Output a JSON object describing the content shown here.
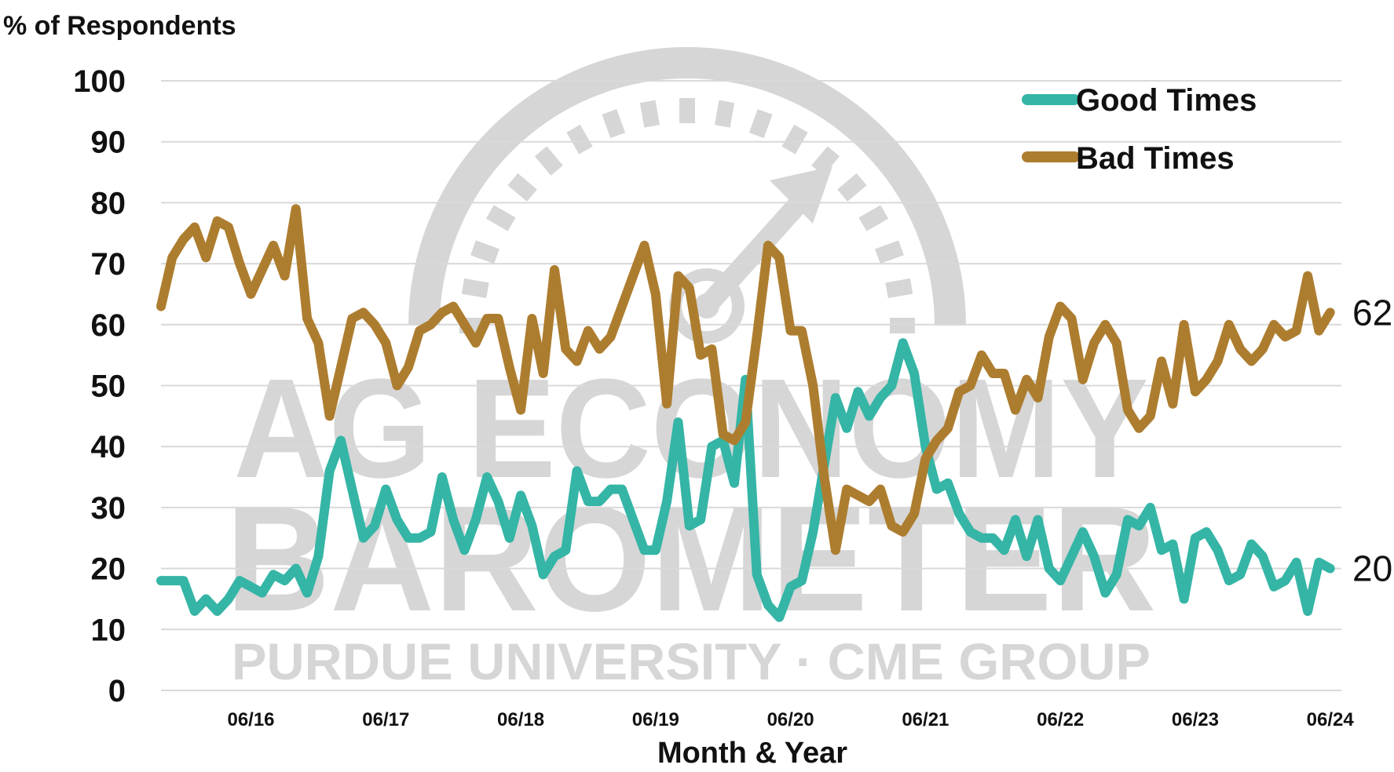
{
  "watermark": {
    "line1": "AG ECONOMY",
    "line2": "BAROMETER",
    "line3": "PURDUE UNIVERSITY · CME GROUP"
  },
  "colors": {
    "good": "#35b5a6",
    "bad": "#ad7d2f",
    "grid": "#d9d9d9",
    "watermark": "#d6d6d6"
  },
  "chart_data": {
    "type": "line",
    "title": "",
    "ylabel": "% of Respondents",
    "xlabel": "Month & Year",
    "ylim": [
      0,
      100
    ],
    "yticks": [
      0,
      10,
      20,
      30,
      40,
      50,
      60,
      70,
      80,
      90,
      100
    ],
    "xticks": [
      "06/16",
      "06/17",
      "06/18",
      "06/19",
      "06/20",
      "06/21",
      "06/22",
      "06/23",
      "06/24"
    ],
    "x_range": [
      "2015-10",
      "2024-07"
    ],
    "grid": true,
    "legend_position": "top-right",
    "series": [
      {
        "name": "Good Times",
        "color": "#35b5a6",
        "end_label": "20",
        "points": [
          [
            "2015-10",
            18
          ],
          [
            "2015-12",
            18
          ],
          [
            "2016-01",
            13
          ],
          [
            "2016-02",
            15
          ],
          [
            "2016-03",
            13
          ],
          [
            "2016-04",
            15
          ],
          [
            "2016-05",
            18
          ],
          [
            "2016-06",
            17
          ],
          [
            "2016-07",
            16
          ],
          [
            "2016-08",
            19
          ],
          [
            "2016-09",
            18
          ],
          [
            "2016-10",
            20
          ],
          [
            "2016-11",
            16
          ],
          [
            "2016-12",
            22
          ],
          [
            "2017-01",
            36
          ],
          [
            "2017-02",
            41
          ],
          [
            "2017-03",
            33
          ],
          [
            "2017-04",
            25
          ],
          [
            "2017-05",
            27
          ],
          [
            "2017-06",
            33
          ],
          [
            "2017-07",
            28
          ],
          [
            "2017-08",
            25
          ],
          [
            "2017-09",
            25
          ],
          [
            "2017-10",
            26
          ],
          [
            "2017-11",
            35
          ],
          [
            "2017-12",
            28
          ],
          [
            "2018-01",
            23
          ],
          [
            "2018-02",
            28
          ],
          [
            "2018-03",
            35
          ],
          [
            "2018-04",
            31
          ],
          [
            "2018-05",
            25
          ],
          [
            "2018-06",
            32
          ],
          [
            "2018-07",
            27
          ],
          [
            "2018-08",
            19
          ],
          [
            "2018-09",
            22
          ],
          [
            "2018-10",
            23
          ],
          [
            "2018-11",
            36
          ],
          [
            "2018-12",
            31
          ],
          [
            "2019-01",
            31
          ],
          [
            "2019-02",
            33
          ],
          [
            "2019-03",
            33
          ],
          [
            "2019-04",
            28
          ],
          [
            "2019-05",
            23
          ],
          [
            "2019-06",
            23
          ],
          [
            "2019-07",
            31
          ],
          [
            "2019-08",
            44
          ],
          [
            "2019-09",
            27
          ],
          [
            "2019-10",
            28
          ],
          [
            "2019-11",
            40
          ],
          [
            "2019-12",
            41
          ],
          [
            "2020-01",
            34
          ],
          [
            "2020-02",
            51
          ],
          [
            "2020-03",
            19
          ],
          [
            "2020-04",
            14
          ],
          [
            "2020-05",
            12
          ],
          [
            "2020-06",
            17
          ],
          [
            "2020-07",
            18
          ],
          [
            "2020-08",
            26
          ],
          [
            "2020-09",
            37
          ],
          [
            "2020-10",
            48
          ],
          [
            "2020-11",
            43
          ],
          [
            "2020-12",
            49
          ],
          [
            "2021-01",
            45
          ],
          [
            "2021-02",
            48
          ],
          [
            "2021-03",
            50
          ],
          [
            "2021-04",
            57
          ],
          [
            "2021-05",
            52
          ],
          [
            "2021-06",
            40
          ],
          [
            "2021-07",
            33
          ],
          [
            "2021-08",
            34
          ],
          [
            "2021-09",
            29
          ],
          [
            "2021-10",
            26
          ],
          [
            "2021-11",
            25
          ],
          [
            "2021-12",
            25
          ],
          [
            "2022-01",
            23
          ],
          [
            "2022-02",
            28
          ],
          [
            "2022-03",
            22
          ],
          [
            "2022-04",
            28
          ],
          [
            "2022-05",
            20
          ],
          [
            "2022-06",
            18
          ],
          [
            "2022-07",
            22
          ],
          [
            "2022-08",
            26
          ],
          [
            "2022-09",
            22
          ],
          [
            "2022-10",
            16
          ],
          [
            "2022-11",
            19
          ],
          [
            "2022-12",
            28
          ],
          [
            "2023-01",
            27
          ],
          [
            "2023-02",
            30
          ],
          [
            "2023-03",
            23
          ],
          [
            "2023-04",
            24
          ],
          [
            "2023-05",
            15
          ],
          [
            "2023-06",
            25
          ],
          [
            "2023-07",
            26
          ],
          [
            "2023-08",
            23
          ],
          [
            "2023-09",
            18
          ],
          [
            "2023-10",
            19
          ],
          [
            "2023-11",
            24
          ],
          [
            "2023-12",
            22
          ],
          [
            "2024-01",
            17
          ],
          [
            "2024-02",
            18
          ],
          [
            "2024-03",
            21
          ],
          [
            "2024-04",
            13
          ],
          [
            "2024-05",
            21
          ],
          [
            "2024-06",
            20
          ]
        ]
      },
      {
        "name": "Bad Times",
        "color": "#ad7d2f",
        "end_label": "62",
        "points": [
          [
            "2015-10",
            63
          ],
          [
            "2015-11",
            71
          ],
          [
            "2015-12",
            74
          ],
          [
            "2016-01",
            76
          ],
          [
            "2016-02",
            71
          ],
          [
            "2016-03",
            77
          ],
          [
            "2016-04",
            76
          ],
          [
            "2016-05",
            70
          ],
          [
            "2016-06",
            65
          ],
          [
            "2016-07",
            69
          ],
          [
            "2016-08",
            73
          ],
          [
            "2016-09",
            68
          ],
          [
            "2016-10",
            79
          ],
          [
            "2016-11",
            61
          ],
          [
            "2016-12",
            57
          ],
          [
            "2017-01",
            45
          ],
          [
            "2017-02",
            53
          ],
          [
            "2017-03",
            61
          ],
          [
            "2017-04",
            62
          ],
          [
            "2017-05",
            60
          ],
          [
            "2017-06",
            57
          ],
          [
            "2017-07",
            50
          ],
          [
            "2017-08",
            53
          ],
          [
            "2017-09",
            59
          ],
          [
            "2017-10",
            60
          ],
          [
            "2017-11",
            62
          ],
          [
            "2017-12",
            63
          ],
          [
            "2018-01",
            60
          ],
          [
            "2018-02",
            57
          ],
          [
            "2018-03",
            61
          ],
          [
            "2018-04",
            61
          ],
          [
            "2018-05",
            53
          ],
          [
            "2018-06",
            46
          ],
          [
            "2018-07",
            61
          ],
          [
            "2018-08",
            52
          ],
          [
            "2018-09",
            69
          ],
          [
            "2018-10",
            56
          ],
          [
            "2018-11",
            54
          ],
          [
            "2018-12",
            59
          ],
          [
            "2019-01",
            56
          ],
          [
            "2019-02",
            58
          ],
          [
            "2019-03",
            63
          ],
          [
            "2019-04",
            68
          ],
          [
            "2019-05",
            73
          ],
          [
            "2019-06",
            65
          ],
          [
            "2019-07",
            47
          ],
          [
            "2019-08",
            68
          ],
          [
            "2019-09",
            66
          ],
          [
            "2019-10",
            55
          ],
          [
            "2019-11",
            56
          ],
          [
            "2019-12",
            42
          ],
          [
            "2020-01",
            41
          ],
          [
            "2020-02",
            44
          ],
          [
            "2020-03",
            58
          ],
          [
            "2020-04",
            73
          ],
          [
            "2020-05",
            71
          ],
          [
            "2020-06",
            59
          ],
          [
            "2020-07",
            59
          ],
          [
            "2020-08",
            50
          ],
          [
            "2020-09",
            35
          ],
          [
            "2020-10",
            23
          ],
          [
            "2020-11",
            33
          ],
          [
            "2020-12",
            32
          ],
          [
            "2021-01",
            31
          ],
          [
            "2021-02",
            33
          ],
          [
            "2021-03",
            27
          ],
          [
            "2021-04",
            26
          ],
          [
            "2021-05",
            29
          ],
          [
            "2021-06",
            38
          ],
          [
            "2021-07",
            41
          ],
          [
            "2021-08",
            43
          ],
          [
            "2021-09",
            49
          ],
          [
            "2021-10",
            50
          ],
          [
            "2021-11",
            55
          ],
          [
            "2021-12",
            52
          ],
          [
            "2022-01",
            52
          ],
          [
            "2022-02",
            46
          ],
          [
            "2022-03",
            51
          ],
          [
            "2022-04",
            48
          ],
          [
            "2022-05",
            58
          ],
          [
            "2022-06",
            63
          ],
          [
            "2022-07",
            61
          ],
          [
            "2022-08",
            51
          ],
          [
            "2022-09",
            57
          ],
          [
            "2022-10",
            60
          ],
          [
            "2022-11",
            57
          ],
          [
            "2022-12",
            46
          ],
          [
            "2023-01",
            43
          ],
          [
            "2023-02",
            45
          ],
          [
            "2023-03",
            54
          ],
          [
            "2023-04",
            47
          ],
          [
            "2023-05",
            60
          ],
          [
            "2023-06",
            49
          ],
          [
            "2023-07",
            51
          ],
          [
            "2023-08",
            54
          ],
          [
            "2023-09",
            60
          ],
          [
            "2023-10",
            56
          ],
          [
            "2023-11",
            54
          ],
          [
            "2023-12",
            56
          ],
          [
            "2024-01",
            60
          ],
          [
            "2024-02",
            58
          ],
          [
            "2024-03",
            59
          ],
          [
            "2024-04",
            68
          ],
          [
            "2024-05",
            59
          ],
          [
            "2024-06",
            62
          ]
        ]
      }
    ]
  }
}
